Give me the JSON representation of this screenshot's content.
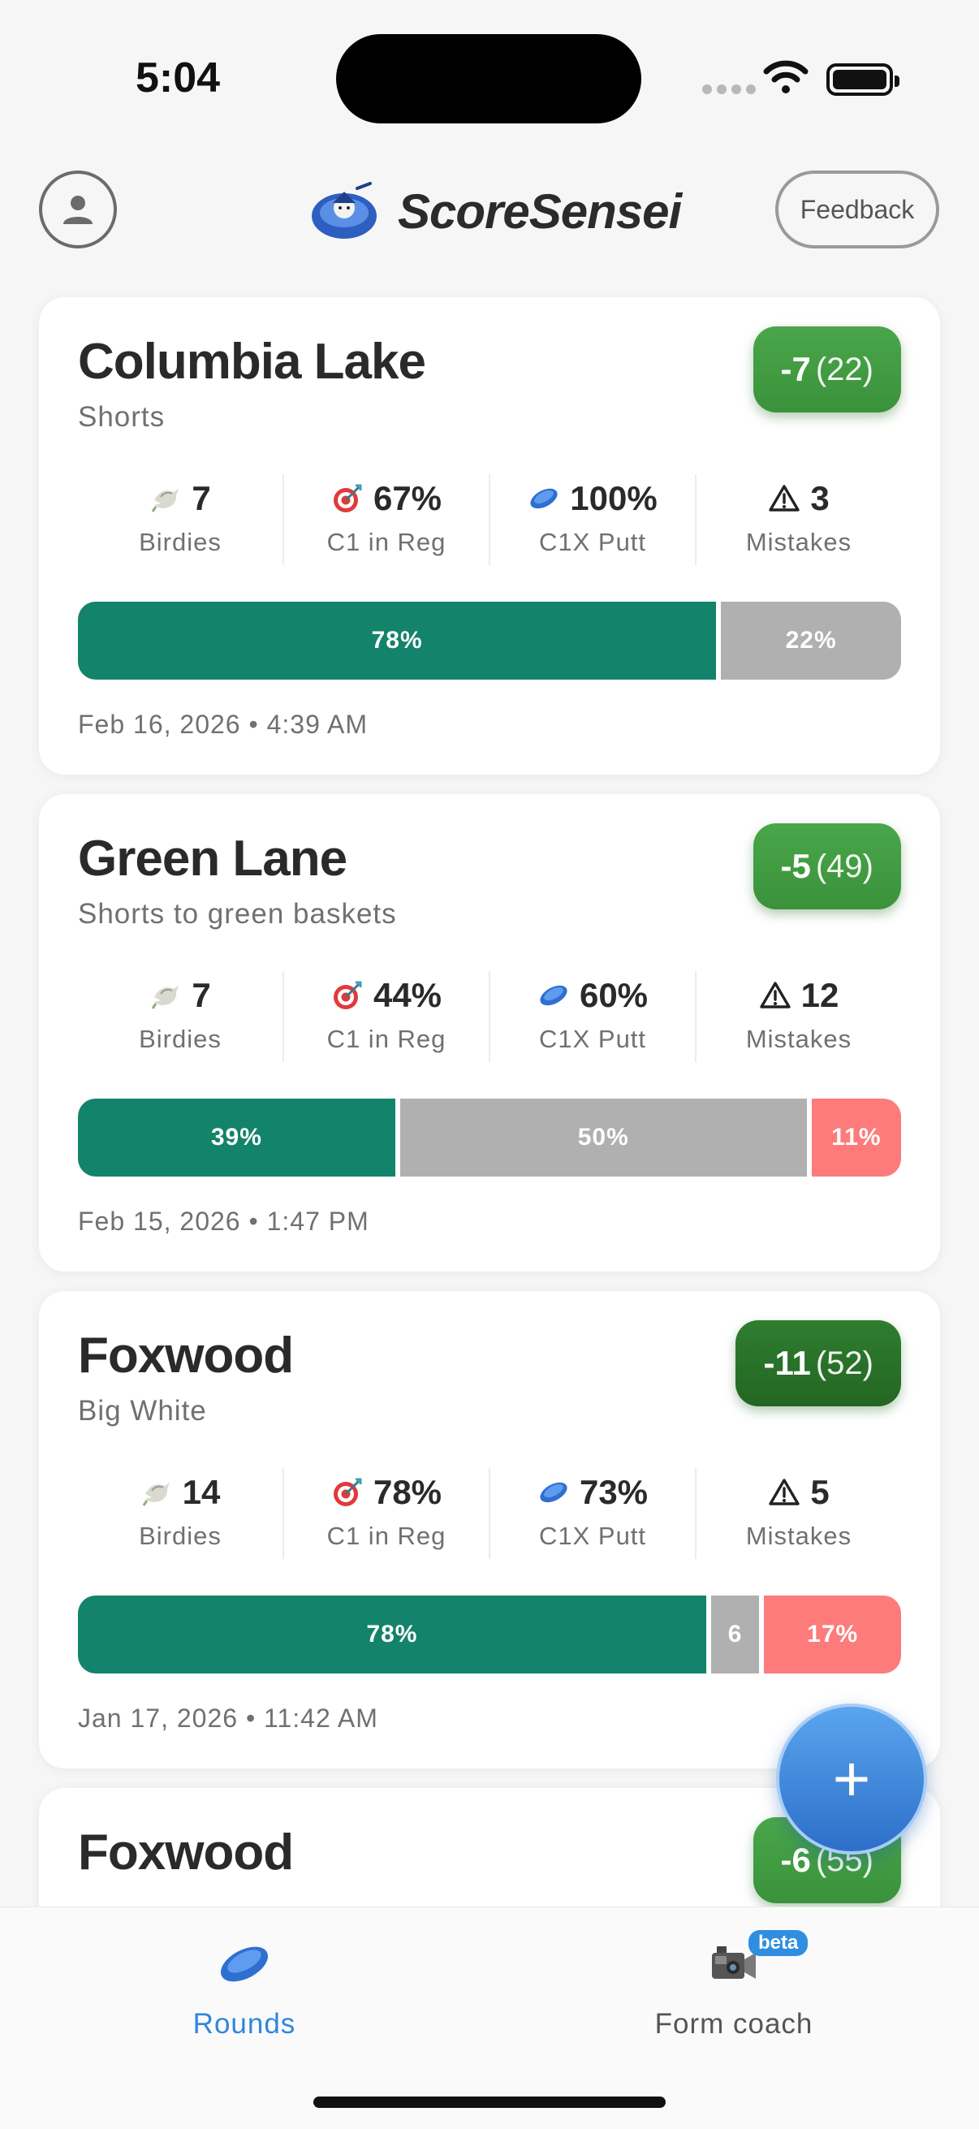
{
  "status_bar": {
    "time": "5:04"
  },
  "header": {
    "brand_name": "ScoreSensei",
    "feedback_label": "Feedback"
  },
  "colors": {
    "score_green": "#3f9a3f",
    "score_dark_green": "#257025",
    "bar_good": "#13836b",
    "bar_mid": "#b0b0b0",
    "bar_bad": "#fd7b7b",
    "accent_blue": "#2f86de"
  },
  "stat_icons": [
    "bird-icon",
    "target-icon",
    "disc-icon",
    "warning-icon"
  ],
  "rounds": [
    {
      "course": "Columbia Lake",
      "layout": "Shorts",
      "score": "-7",
      "strokes": "(22)",
      "stats": {
        "birdies": "7",
        "birdies_label": "Birdies",
        "c1_reg": "67%",
        "c1_reg_label": "C1 in Reg",
        "c1x_putt": "100%",
        "c1x_putt_label": "C1X Putt",
        "mistakes": "3",
        "mistakes_label": "Mistakes"
      },
      "bar": [
        {
          "label": "78%",
          "value": 78,
          "kind": "good"
        },
        {
          "label": "22%",
          "value": 22,
          "kind": "mid"
        }
      ],
      "date": "Feb 16, 2026 • 4:39 AM"
    },
    {
      "course": "Green Lane",
      "layout": "Shorts to green baskets",
      "score": "-5",
      "strokes": "(49)",
      "stats": {
        "birdies": "7",
        "birdies_label": "Birdies",
        "c1_reg": "44%",
        "c1_reg_label": "C1 in Reg",
        "c1x_putt": "60%",
        "c1x_putt_label": "C1X Putt",
        "mistakes": "12",
        "mistakes_label": "Mistakes"
      },
      "bar": [
        {
          "label": "39%",
          "value": 39,
          "kind": "good"
        },
        {
          "label": "50%",
          "value": 50,
          "kind": "mid"
        },
        {
          "label": "11%",
          "value": 11,
          "kind": "bad"
        }
      ],
      "date": "Feb 15, 2026 • 1:47 PM"
    },
    {
      "course": "Foxwood",
      "layout": "Big White",
      "score": "-11",
      "strokes": "(52)",
      "stats": {
        "birdies": "14",
        "birdies_label": "Birdies",
        "c1_reg": "78%",
        "c1_reg_label": "C1 in Reg",
        "c1x_putt": "73%",
        "c1x_putt_label": "C1X Putt",
        "mistakes": "5",
        "mistakes_label": "Mistakes"
      },
      "bar": [
        {
          "label": "78%",
          "value": 78,
          "kind": "good"
        },
        {
          "label": "6",
          "value": 6,
          "kind": "mid"
        },
        {
          "label": "17%",
          "value": 17,
          "kind": "bad"
        }
      ],
      "date": "Jan 17, 2026 • 11:42 AM"
    },
    {
      "course": "Foxwood",
      "score": "-6",
      "strokes": "(55)"
    }
  ],
  "fab": {
    "label": "+"
  },
  "tabs": [
    {
      "label": "Rounds",
      "icon": "disc-icon",
      "active": true
    },
    {
      "label": "Form coach",
      "icon": "video-camera-icon",
      "badge": "beta",
      "active": false
    }
  ]
}
